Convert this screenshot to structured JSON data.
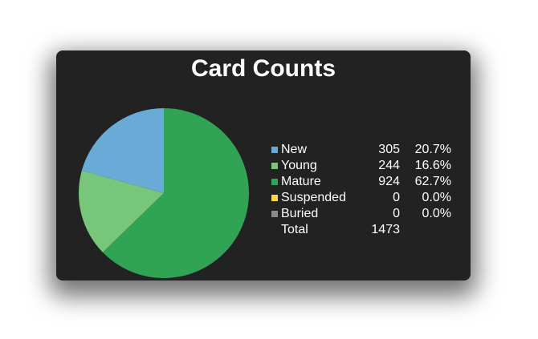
{
  "chart_data": {
    "type": "pie",
    "title": "Card Counts",
    "slices": [
      {
        "label": "New",
        "count": "305",
        "percent": "20.7%",
        "value": 305,
        "color": "#6aaad6"
      },
      {
        "label": "Young",
        "count": "244",
        "percent": "16.6%",
        "value": 244,
        "color": "#78c679"
      },
      {
        "label": "Mature",
        "count": "924",
        "percent": "62.7%",
        "value": 924,
        "color": "#31a354"
      },
      {
        "label": "Suspended",
        "count": "0",
        "percent": "0.0%",
        "value": 0,
        "color": "#ffd54f"
      },
      {
        "label": "Buried",
        "count": "0",
        "percent": "0.0%",
        "value": 0,
        "color": "#8a8a8a"
      }
    ],
    "total_label": "Total",
    "total": "1473",
    "legend_position": "right"
  }
}
